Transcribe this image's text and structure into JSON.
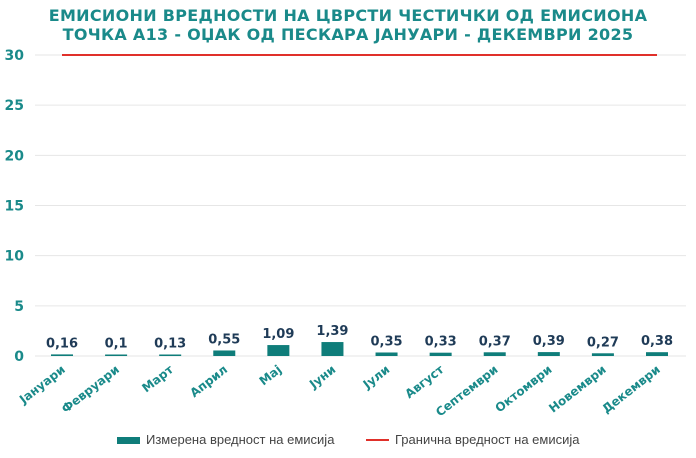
{
  "chart_data": {
    "type": "bar",
    "title_lines": [
      "ЕМИСИОНИ ВРЕДНОСТИ НА ЦВРСТИ ЧЕСТИЧКИ ОД ЕМИСИОНА",
      "ТОЧКА А13 - ОЏАК ОД ПЕСКАРА ЈАНУАРИ - ДЕКЕМВРИ 2025"
    ],
    "categories": [
      "Јануари",
      "Февруари",
      "Март",
      "Април",
      "Мај",
      "Јуни",
      "Јули",
      "Август",
      "Септември",
      "Октомври",
      "Новември",
      "Декември"
    ],
    "series": [
      {
        "name": "Измерена вредност на емисија",
        "type": "bar",
        "color": "#0f7d7a",
        "values": [
          0.16,
          0.1,
          0.13,
          0.55,
          1.09,
          1.39,
          0.35,
          0.33,
          0.37,
          0.39,
          0.27,
          0.38
        ],
        "labels": [
          "0,16",
          "0,1",
          "0,13",
          "0,55",
          "1,09",
          "1,39",
          "0,35",
          "0,33",
          "0,37",
          "0,39",
          "0,27",
          "0,38"
        ]
      },
      {
        "name": "Гранична вредност на емисија",
        "type": "line",
        "color": "#e0302a",
        "values": [
          30,
          30,
          30,
          30,
          30,
          30,
          30,
          30,
          30,
          30,
          30,
          30
        ]
      }
    ],
    "ylim": [
      0,
      30
    ],
    "yticks": [
      "0",
      "5",
      "10",
      "15",
      "20",
      "25",
      "30"
    ],
    "ytick_values": [
      0,
      5,
      10,
      15,
      20,
      25,
      30
    ],
    "grid": true,
    "legend_position": "bottom"
  }
}
